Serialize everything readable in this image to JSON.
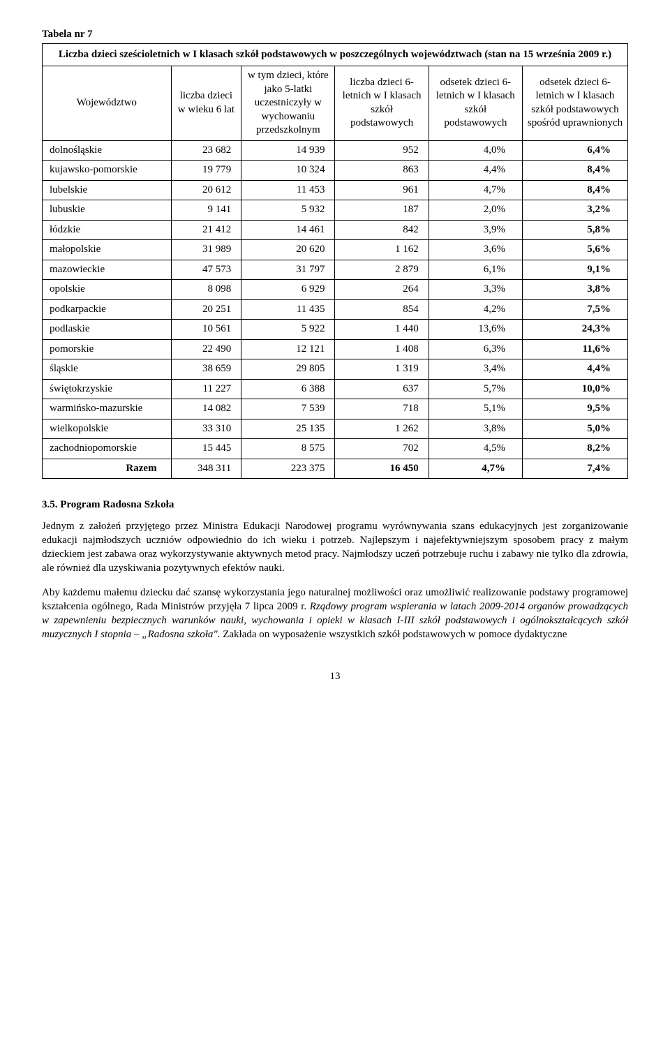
{
  "table": {
    "label": "Tabela nr 7",
    "caption": "Liczba dzieci sześcioletnich w I klasach szkół podstawowych w poszczególnych województwach (stan na 15 września 2009 r.)",
    "headers": [
      "Województwo",
      "liczba dzieci w wieku 6 lat",
      "w tym dzieci, które jako 5-latki uczestniczyły w wychowaniu przedszkolnym",
      "liczba dzieci 6-letnich w I klasach szkół podstawowych",
      "odsetek dzieci 6-letnich w I klasach szkół podstawowych",
      "odsetek dzieci 6-letnich w I klasach szkół podstawowych spośród uprawnionych"
    ],
    "rows": [
      {
        "name": "dolnośląskie",
        "c1": "23 682",
        "c2": "14 939",
        "c3": "952",
        "c4": "4,0%",
        "c5": "6,4%"
      },
      {
        "name": "kujawsko-pomorskie",
        "c1": "19 779",
        "c2": "10 324",
        "c3": "863",
        "c4": "4,4%",
        "c5": "8,4%"
      },
      {
        "name": "lubelskie",
        "c1": "20 612",
        "c2": "11 453",
        "c3": "961",
        "c4": "4,7%",
        "c5": "8,4%"
      },
      {
        "name": "lubuskie",
        "c1": "9 141",
        "c2": "5 932",
        "c3": "187",
        "c4": "2,0%",
        "c5": "3,2%"
      },
      {
        "name": "łódzkie",
        "c1": "21 412",
        "c2": "14 461",
        "c3": "842",
        "c4": "3,9%",
        "c5": "5,8%"
      },
      {
        "name": "małopolskie",
        "c1": "31 989",
        "c2": "20 620",
        "c3": "1 162",
        "c4": "3,6%",
        "c5": "5,6%"
      },
      {
        "name": "mazowieckie",
        "c1": "47 573",
        "c2": "31 797",
        "c3": "2 879",
        "c4": "6,1%",
        "c5": "9,1%"
      },
      {
        "name": "opolskie",
        "c1": "8 098",
        "c2": "6 929",
        "c3": "264",
        "c4": "3,3%",
        "c5": "3,8%"
      },
      {
        "name": "podkarpackie",
        "c1": "20 251",
        "c2": "11 435",
        "c3": "854",
        "c4": "4,2%",
        "c5": "7,5%"
      },
      {
        "name": "podlaskie",
        "c1": "10 561",
        "c2": "5 922",
        "c3": "1 440",
        "c4": "13,6%",
        "c5": "24,3%"
      },
      {
        "name": "pomorskie",
        "c1": "22 490",
        "c2": "12 121",
        "c3": "1 408",
        "c4": "6,3%",
        "c5": "11,6%"
      },
      {
        "name": "śląskie",
        "c1": "38 659",
        "c2": "29 805",
        "c3": "1 319",
        "c4": "3,4%",
        "c5": "4,4%"
      },
      {
        "name": "świętokrzyskie",
        "c1": "11 227",
        "c2": "6 388",
        "c3": "637",
        "c4": "5,7%",
        "c5": "10,0%"
      },
      {
        "name": "warmińsko-mazurskie",
        "c1": "14 082",
        "c2": "7 539",
        "c3": "718",
        "c4": "5,1%",
        "c5": "9,5%"
      },
      {
        "name": "wielkopolskie",
        "c1": "33 310",
        "c2": "25 135",
        "c3": "1 262",
        "c4": "3,8%",
        "c5": "5,0%"
      },
      {
        "name": "zachodniopomorskie",
        "c1": "15 445",
        "c2": "8 575",
        "c3": "702",
        "c4": "4,5%",
        "c5": "8,2%"
      }
    ],
    "total": {
      "name": "Razem",
      "c1": "348 311",
      "c2": "223 375",
      "c3": "16 450",
      "c4": "4,7%",
      "c5": "7,4%"
    }
  },
  "section": {
    "heading": "3.5. Program Radosna Szkoła",
    "p1": "Jednym z założeń przyjętego przez Ministra Edukacji Narodowej programu wyrównywania szans edukacyjnych jest zorganizowanie edukacji najmłodszych uczniów odpowiednio do ich wieku i potrzeb. Najlepszym i najefektywniejszym sposobem pracy z małym dzieckiem jest zabawa oraz wykorzystywanie aktywnych metod pracy. Najmłodszy uczeń potrzebuje ruchu i zabawy nie tylko dla zdrowia, ale również dla uzyskiwania pozytywnych efektów nauki.",
    "p2a": "Aby każdemu małemu dziecku dać szansę wykorzystania jego naturalnej możliwości oraz umożliwić realizowanie podstawy programowej kształcenia ogólnego, Rada Ministrów przyjęła 7 lipca 2009 r. ",
    "p2italic": "Rządowy program wspierania w latach 2009-2014 organów prowadzących w zapewnieniu bezpiecznych warunków nauki, wychowania i opieki w klasach I-III szkół podstawowych i ogólnokształcących szkół muzycznych I stopnia – „Radosna szkoła\".",
    "p2b": " Zakłada on wyposażenie wszystkich szkół podstawowych w pomoce dydaktyczne"
  },
  "page_number": "13"
}
